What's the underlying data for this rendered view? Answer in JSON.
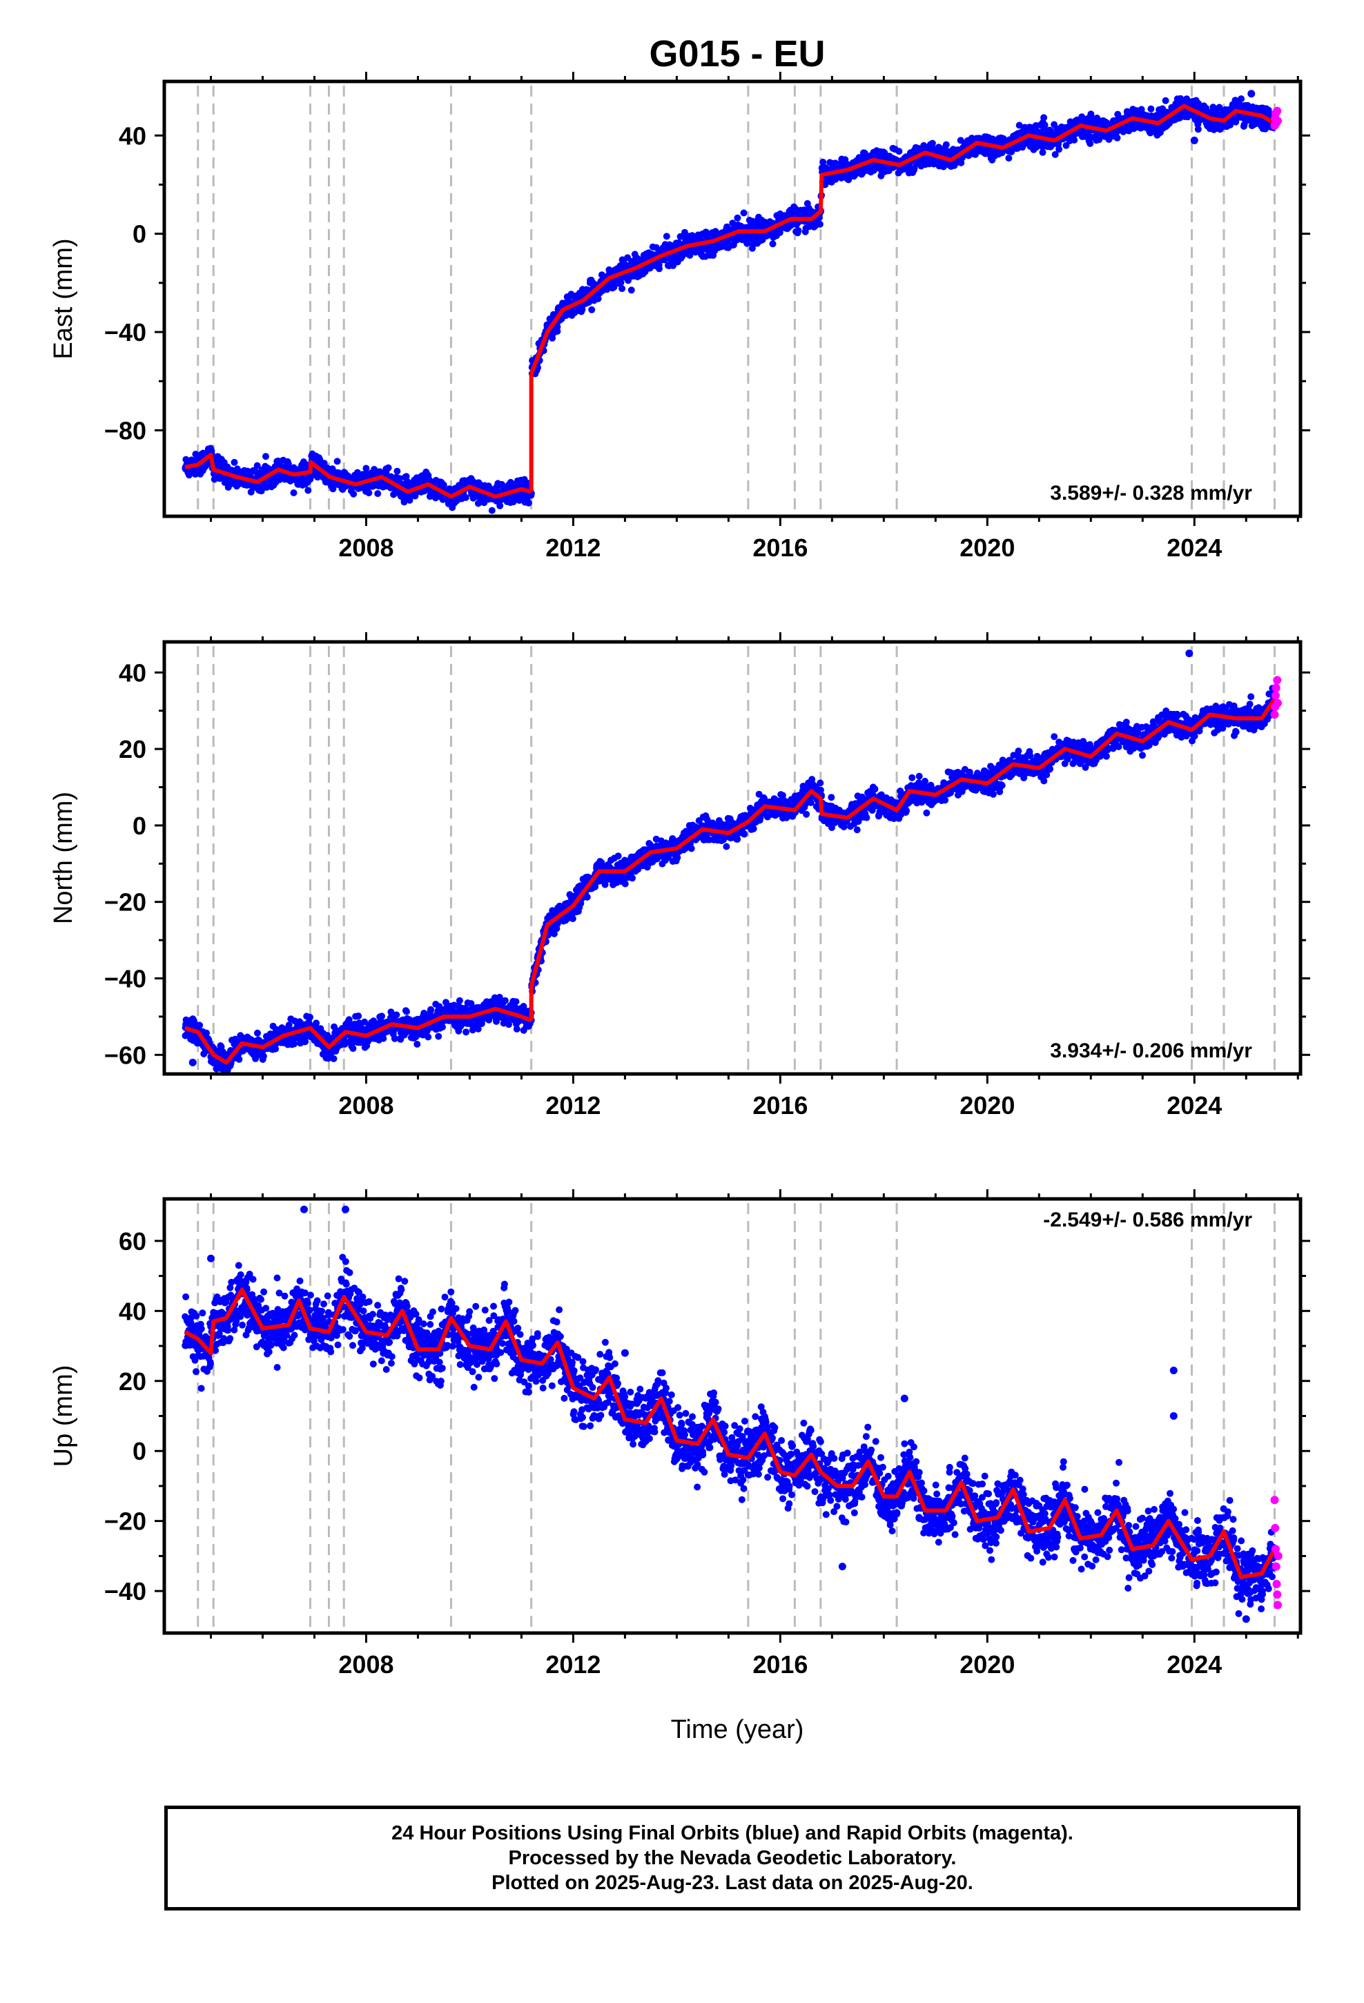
{
  "title": "G015 - EU",
  "x_axis_label": "Time (year)",
  "footer": {
    "line1": "24 Hour Positions Using Final Orbits (blue) and Rapid Orbits (magenta).",
    "line2": "Processed by the Nevada Geodetic Laboratory.",
    "line3": "Plotted on 2025-Aug-23. Last data on 2025-Aug-20."
  },
  "colors": {
    "final_orbits": "#0000ff",
    "rapid_orbits": "#ff00ff",
    "model": "#ff0000",
    "event_lines": "#bbbbbb",
    "frame": "#000000"
  },
  "chart_data": [
    {
      "type": "scatter",
      "ylabel": "East (mm)",
      "xlim": [
        2004.1,
        2026.05
      ],
      "ylim": [
        -115,
        62
      ],
      "xticks": [
        2008,
        2012,
        2016,
        2020,
        2024
      ],
      "yticks": [
        -80,
        -40,
        0,
        40
      ],
      "rate_text": "3.589+/- 0.328 mm/yr",
      "event_years": [
        2004.75,
        2005.05,
        2006.92,
        2007.28,
        2007.57,
        2009.64,
        2011.19,
        2015.38,
        2016.28,
        2016.78,
        2018.25,
        2023.95,
        2024.57,
        2025.55
      ],
      "model_segments": [
        {
          "points": [
            [
              2004.5,
              -95
            ],
            [
              2004.75,
              -94
            ],
            [
              2005.0,
              -90
            ],
            [
              2005.05,
              -96
            ],
            [
              2005.5,
              -99
            ],
            [
              2005.9,
              -101
            ],
            [
              2006.3,
              -96
            ],
            [
              2006.6,
              -98
            ],
            [
              2006.92,
              -97
            ],
            [
              2006.93,
              -93
            ],
            [
              2007.3,
              -99
            ],
            [
              2007.8,
              -102
            ],
            [
              2008.3,
              -99
            ],
            [
              2008.8,
              -105
            ],
            [
              2009.2,
              -102
            ],
            [
              2009.64,
              -107
            ],
            [
              2010.0,
              -103
            ],
            [
              2010.5,
              -107
            ],
            [
              2011.0,
              -104
            ],
            [
              2011.19,
              -105
            ]
          ]
        },
        {
          "points": [
            [
              2011.19,
              -57
            ],
            [
              2011.5,
              -40
            ],
            [
              2011.8,
              -31
            ],
            [
              2012.2,
              -27
            ],
            [
              2012.7,
              -18
            ],
            [
              2013.2,
              -14
            ],
            [
              2013.7,
              -9
            ],
            [
              2014.2,
              -5
            ],
            [
              2014.7,
              -3
            ],
            [
              2015.2,
              1
            ],
            [
              2015.7,
              1
            ],
            [
              2016.2,
              6
            ],
            [
              2016.6,
              6
            ],
            [
              2016.78,
              9
            ],
            [
              2016.8,
              24
            ],
            [
              2017.3,
              26
            ],
            [
              2017.8,
              30
            ],
            [
              2018.3,
              28
            ],
            [
              2018.8,
              33
            ],
            [
              2019.3,
              30
            ],
            [
              2019.8,
              37
            ],
            [
              2020.3,
              35
            ],
            [
              2020.8,
              40
            ],
            [
              2021.3,
              38
            ],
            [
              2021.8,
              44
            ],
            [
              2022.3,
              42
            ],
            [
              2022.8,
              47
            ],
            [
              2023.3,
              45
            ],
            [
              2023.8,
              52
            ],
            [
              2024.3,
              47
            ],
            [
              2024.57,
              46
            ],
            [
              2024.8,
              50
            ],
            [
              2025.3,
              48
            ],
            [
              2025.55,
              45
            ]
          ]
        }
      ],
      "final_orbit_scatter_sd": 2.2,
      "rapid_orbit_points": [
        [
          2025.55,
          44
        ],
        [
          2025.56,
          47
        ],
        [
          2025.57,
          49
        ],
        [
          2025.58,
          45
        ],
        [
          2025.6,
          50
        ],
        [
          2025.61,
          46
        ]
      ],
      "outliers": [
        [
          2024.0,
          38
        ],
        [
          2025.1,
          57
        ],
        [
          2008.2,
          -102
        ]
      ]
    },
    {
      "type": "scatter",
      "ylabel": "North (mm)",
      "xlim": [
        2004.1,
        2026.05
      ],
      "ylim": [
        -65,
        48
      ],
      "xticks": [
        2008,
        2012,
        2016,
        2020,
        2024
      ],
      "yticks": [
        -60,
        -40,
        -20,
        0,
        20,
        40
      ],
      "rate_text": "3.934+/- 0.206 mm/yr",
      "event_years": [
        2004.75,
        2005.05,
        2006.92,
        2007.28,
        2007.57,
        2009.64,
        2011.19,
        2015.38,
        2016.28,
        2016.78,
        2018.25,
        2023.95,
        2024.57,
        2025.55
      ],
      "model_segments": [
        {
          "points": [
            [
              2004.5,
              -53
            ],
            [
              2004.75,
              -54
            ],
            [
              2005.05,
              -60
            ],
            [
              2005.3,
              -62
            ],
            [
              2005.6,
              -57
            ],
            [
              2006.0,
              -58
            ],
            [
              2006.4,
              -55
            ],
            [
              2006.92,
              -53
            ],
            [
              2007.28,
              -58
            ],
            [
              2007.6,
              -54
            ],
            [
              2008.0,
              -55
            ],
            [
              2008.5,
              -52
            ],
            [
              2009.0,
              -53
            ],
            [
              2009.5,
              -50
            ],
            [
              2010.0,
              -50
            ],
            [
              2010.5,
              -48
            ],
            [
              2011.0,
              -50
            ],
            [
              2011.19,
              -51
            ]
          ]
        },
        {
          "points": [
            [
              2011.19,
              -42
            ],
            [
              2011.5,
              -26
            ],
            [
              2012.0,
              -21
            ],
            [
              2012.5,
              -12
            ],
            [
              2013.0,
              -12
            ],
            [
              2013.5,
              -7
            ],
            [
              2014.0,
              -6
            ],
            [
              2014.5,
              -1
            ],
            [
              2015.0,
              -2
            ],
            [
              2015.38,
              1
            ],
            [
              2015.7,
              5
            ],
            [
              2016.28,
              4
            ],
            [
              2016.6,
              9
            ],
            [
              2016.78,
              7
            ],
            [
              2016.8,
              3
            ],
            [
              2017.3,
              2
            ],
            [
              2017.8,
              7
            ],
            [
              2018.25,
              4
            ],
            [
              2018.5,
              9
            ],
            [
              2019.0,
              8
            ],
            [
              2019.5,
              12
            ],
            [
              2020.0,
              11
            ],
            [
              2020.5,
              16
            ],
            [
              2021.0,
              15
            ],
            [
              2021.5,
              20
            ],
            [
              2022.0,
              18
            ],
            [
              2022.5,
              24
            ],
            [
              2023.0,
              22
            ],
            [
              2023.5,
              27
            ],
            [
              2023.95,
              25
            ],
            [
              2024.3,
              29
            ],
            [
              2024.8,
              28
            ],
            [
              2025.3,
              28
            ],
            [
              2025.55,
              33
            ]
          ]
        }
      ],
      "final_orbit_scatter_sd": 1.5,
      "rapid_orbit_points": [
        [
          2025.55,
          29
        ],
        [
          2025.56,
          31
        ],
        [
          2025.57,
          34
        ],
        [
          2025.58,
          36
        ],
        [
          2025.6,
          38
        ],
        [
          2025.61,
          32
        ]
      ],
      "outliers": [
        [
          2023.9,
          45
        ],
        [
          2004.65,
          -62
        ]
      ]
    },
    {
      "type": "scatter",
      "ylabel": "Up (mm)",
      "xlim": [
        2004.1,
        2026.05
      ],
      "ylim": [
        -52,
        72
      ],
      "xticks": [
        2008,
        2012,
        2016,
        2020,
        2024
      ],
      "yticks": [
        -40,
        -20,
        0,
        20,
        40,
        60
      ],
      "rate_text": "-2.549+/- 0.586 mm/yr",
      "event_years": [
        2004.75,
        2005.05,
        2006.92,
        2007.28,
        2007.57,
        2009.64,
        2011.19,
        2015.38,
        2016.28,
        2016.78,
        2018.25,
        2023.95,
        2024.57,
        2025.55
      ],
      "model_segments": [
        {
          "points": [
            [
              2004.5,
              34
            ],
            [
              2004.75,
              32
            ],
            [
              2005.0,
              28
            ],
            [
              2005.05,
              37
            ],
            [
              2005.3,
              38
            ],
            [
              2005.6,
              46
            ],
            [
              2006.0,
              35
            ],
            [
              2006.5,
              36
            ],
            [
              2006.7,
              43
            ],
            [
              2006.92,
              35
            ],
            [
              2007.28,
              34
            ],
            [
              2007.57,
              44
            ],
            [
              2008.0,
              34
            ],
            [
              2008.4,
              33
            ],
            [
              2008.7,
              40
            ],
            [
              2009.0,
              29
            ],
            [
              2009.4,
              29
            ],
            [
              2009.64,
              38
            ],
            [
              2010.0,
              30
            ],
            [
              2010.4,
              29
            ],
            [
              2010.7,
              37
            ],
            [
              2011.0,
              26
            ],
            [
              2011.4,
              25
            ],
            [
              2011.7,
              31
            ],
            [
              2012.0,
              18
            ],
            [
              2012.4,
              15
            ],
            [
              2012.7,
              21
            ],
            [
              2013.0,
              9
            ],
            [
              2013.4,
              8
            ],
            [
              2013.7,
              15
            ],
            [
              2014.0,
              3
            ],
            [
              2014.4,
              2
            ],
            [
              2014.7,
              9
            ],
            [
              2015.0,
              -1
            ],
            [
              2015.38,
              -2
            ],
            [
              2015.7,
              5
            ],
            [
              2016.0,
              -6
            ],
            [
              2016.28,
              -7
            ],
            [
              2016.6,
              -1
            ],
            [
              2016.78,
              -6
            ],
            [
              2017.1,
              -10
            ],
            [
              2017.4,
              -10
            ],
            [
              2017.7,
              -3
            ],
            [
              2018.0,
              -13
            ],
            [
              2018.25,
              -13
            ],
            [
              2018.5,
              -6
            ],
            [
              2018.8,
              -17
            ],
            [
              2019.2,
              -17
            ],
            [
              2019.5,
              -9
            ],
            [
              2019.8,
              -20
            ],
            [
              2020.2,
              -19
            ],
            [
              2020.5,
              -11
            ],
            [
              2020.8,
              -23
            ],
            [
              2021.2,
              -22
            ],
            [
              2021.5,
              -14
            ],
            [
              2021.8,
              -25
            ],
            [
              2022.2,
              -24
            ],
            [
              2022.5,
              -17
            ],
            [
              2022.8,
              -28
            ],
            [
              2023.2,
              -27
            ],
            [
              2023.5,
              -20
            ],
            [
              2023.95,
              -31
            ],
            [
              2024.3,
              -30
            ],
            [
              2024.57,
              -23
            ],
            [
              2024.9,
              -36
            ],
            [
              2025.3,
              -35
            ],
            [
              2025.55,
              -28
            ]
          ]
        }
      ],
      "final_orbit_scatter_sd": 4.2,
      "rapid_orbit_points": [
        [
          2025.55,
          -14
        ],
        [
          2025.56,
          -22
        ],
        [
          2025.57,
          -28
        ],
        [
          2025.58,
          -33
        ],
        [
          2025.59,
          -38
        ],
        [
          2025.6,
          -41
        ],
        [
          2025.61,
          -44
        ],
        [
          2025.62,
          -30
        ]
      ],
      "outliers": [
        [
          2006.8,
          69
        ],
        [
          2007.6,
          69
        ],
        [
          2023.6,
          23
        ],
        [
          2023.6,
          10
        ],
        [
          2005.0,
          55
        ],
        [
          2013.0,
          28
        ],
        [
          2018.4,
          15
        ],
        [
          2017.2,
          -33
        ],
        [
          2025.0,
          -48
        ]
      ]
    }
  ]
}
